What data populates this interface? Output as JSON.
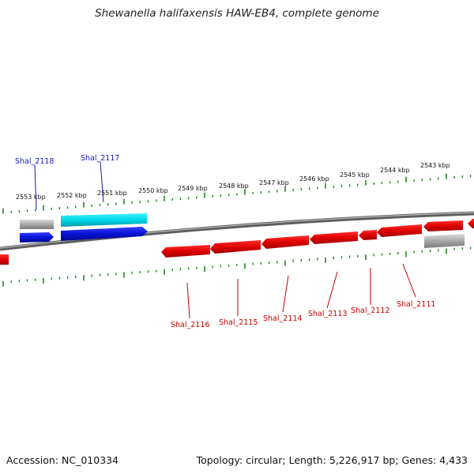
{
  "title": "Shewanella halifaxensis HAW-EB4, complete genome",
  "footer": {
    "accession": "Accession: NC_010334",
    "summary": "Topology: circular; Length: 5,226,917 bp; Genes: 4,433"
  },
  "scale_labels": [
    "2553 kbp",
    "2552 kbp",
    "2551 kbp",
    "2550 kbp",
    "2549 kbp",
    "2548 kbp",
    "2547 kbp",
    "2546 kbp",
    "2545 kbp",
    "2544 kbp",
    "2543 kbp"
  ],
  "gene_labels_top": [
    "Shal_2118",
    "Shal_2117"
  ],
  "gene_labels_bottom": [
    "Shal_2116",
    "Shal_2115",
    "Shal_2114",
    "Shal_2113",
    "Shal_2112",
    "Shal_2111"
  ],
  "colors": {
    "forward_cds": "#0a14d8",
    "forward_rna": "#00d8e8",
    "reverse_cds": "#e00000",
    "pseudo": "#a8a8a8",
    "backbone": "#808080",
    "ticks": "#1a8a1a",
    "label_forward": "#1818b8",
    "label_reverse": "#cc0000"
  }
}
